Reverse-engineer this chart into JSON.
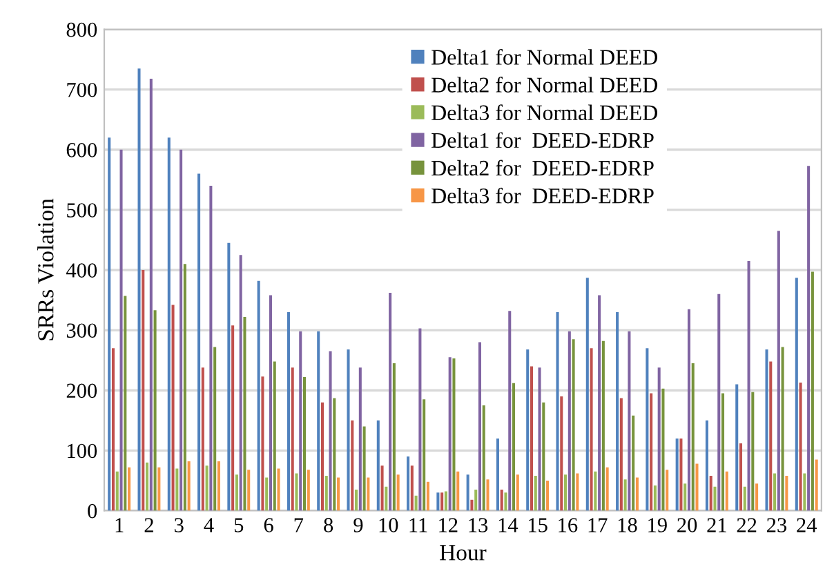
{
  "chart_data": {
    "type": "bar",
    "xlabel": "Hour",
    "ylabel": "SRRs Violation",
    "categories": [
      "1",
      "2",
      "3",
      "4",
      "5",
      "6",
      "7",
      "8",
      "9",
      "10",
      "11",
      "12",
      "13",
      "14",
      "15",
      "16",
      "17",
      "18",
      "19",
      "20",
      "21",
      "22",
      "23",
      "24"
    ],
    "ylim": [
      0,
      800
    ],
    "yticks": [
      0,
      100,
      200,
      300,
      400,
      500,
      600,
      700,
      800
    ],
    "grid": "y",
    "legend": "top",
    "series": [
      {
        "name": "Delta1 for Normal DEED",
        "color": "#4f81bd",
        "values": [
          620,
          735,
          620,
          560,
          445,
          382,
          330,
          298,
          268,
          150,
          90,
          30,
          60,
          120,
          268,
          330,
          387,
          330,
          270,
          120,
          150,
          210,
          268,
          387
        ]
      },
      {
        "name": "Delta2 for Normal DEED",
        "color": "#c0504d",
        "values": [
          270,
          400,
          342,
          238,
          308,
          223,
          238,
          180,
          150,
          75,
          75,
          30,
          18,
          35,
          240,
          190,
          270,
          187,
          195,
          120,
          58,
          112,
          248,
          213
        ]
      },
      {
        "name": "Delta3 for Normal DEED",
        "color": "#9bbb59",
        "values": [
          65,
          80,
          70,
          75,
          60,
          55,
          62,
          58,
          35,
          40,
          25,
          32,
          35,
          30,
          58,
          60,
          65,
          52,
          42,
          45,
          40,
          40,
          62,
          62
        ]
      },
      {
        "name": "Delta1 for  DEED-EDRP",
        "color": "#8064a2",
        "values": [
          600,
          718,
          600,
          540,
          425,
          358,
          298,
          265,
          238,
          362,
          303,
          255,
          280,
          332,
          238,
          298,
          358,
          298,
          238,
          335,
          360,
          415,
          465,
          573
        ]
      },
      {
        "name": "Delta2 for  DEED-EDRP",
        "color": "#77933c",
        "values": [
          357,
          333,
          410,
          272,
          322,
          248,
          222,
          187,
          140,
          245,
          185,
          253,
          175,
          212,
          180,
          285,
          282,
          158,
          203,
          245,
          195,
          197,
          272,
          397
        ]
      },
      {
        "name": "Delta3 for  DEED-EDRP",
        "color": "#f79646",
        "values": [
          72,
          72,
          82,
          82,
          68,
          70,
          68,
          55,
          55,
          60,
          48,
          65,
          52,
          60,
          50,
          62,
          72,
          55,
          68,
          78,
          65,
          45,
          58,
          85
        ]
      }
    ]
  }
}
